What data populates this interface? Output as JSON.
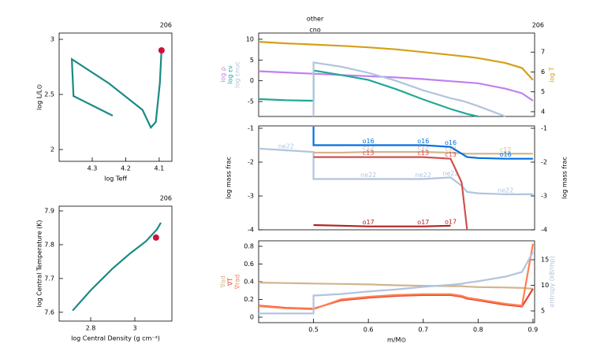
{
  "chart_data": [
    {
      "type": "line",
      "annotation": "206",
      "xlabel": "log Teff",
      "ylabel": "log L/L⊙",
      "color": "#1a8a84",
      "x": [
        4.239,
        4.356,
        4.361,
        4.25,
        4.15,
        4.125,
        4.11,
        4.098,
        4.093
      ],
      "values": [
        2.307,
        2.486,
        2.82,
        2.6,
        2.36,
        2.2,
        2.25,
        2.6,
        2.9
      ],
      "marker": {
        "x": 4.093,
        "y": 2.9,
        "color": "#d0103a"
      },
      "xlim": [
        4.399,
        4.062
      ],
      "ylim": [
        1.893,
        3.057
      ],
      "xticks": [
        4.3,
        4.2,
        4.1
      ],
      "yticks": [
        2,
        2.5,
        3
      ]
    },
    {
      "type": "line",
      "annotation": "206",
      "xlabel": "log Central Density (g cm⁻³)",
      "ylabel": "log Central Temperature (K)",
      "color": "#1a8a84",
      "x": [
        2.718,
        2.8,
        2.9,
        2.98,
        3.05,
        3.1,
        3.118
      ],
      "values": [
        7.605,
        7.665,
        7.73,
        7.775,
        7.81,
        7.845,
        7.865
      ],
      "marker": {
        "x": 3.096,
        "y": 7.821,
        "color": "#d0103a"
      },
      "xlim": [
        2.657,
        3.168
      ],
      "ylim": [
        7.574,
        7.914
      ],
      "xticks": [
        2.8,
        3
      ],
      "yticks": [
        7.6,
        7.7,
        7.8,
        7.9
      ]
    },
    {
      "type": "line",
      "annotation": "206",
      "notes_top": [
        "other",
        "cno"
      ],
      "x": [
        0.4,
        0.45,
        0.5,
        0.5,
        0.55,
        0.6,
        0.65,
        0.7,
        0.75,
        0.77,
        0.78,
        0.8,
        0.85,
        0.88,
        0.9
      ],
      "xlim": [
        0.4,
        0.903
      ],
      "ylim": [
        -8.6,
        11.5
      ],
      "yticks": [
        -5,
        0,
        5,
        10
      ],
      "y2lim": [
        3.76,
        7.96
      ],
      "y2ticks": [
        4,
        5,
        6,
        7
      ],
      "series": [
        {
          "name": "log ρ",
          "color": "#c080f0",
          "values": [
            2.3,
            2.0,
            1.7,
            1.7,
            1.4,
            1.1,
            0.8,
            0.4,
            -0.1,
            -0.3,
            -0.4,
            -0.6,
            -1.9,
            -3,
            -4.8
          ]
        },
        {
          "name": "log εν",
          "color": "#20a898",
          "values": [
            -4.4,
            -4.7,
            -4.8,
            2.5,
            1.4,
            0.2,
            -2.0,
            -4.5,
            -6.8,
            -7.6,
            -8.0,
            -8.6,
            null,
            null,
            null
          ]
        },
        {
          "name": "log εnuc",
          "color": "#b0c4de",
          "values": [
            null,
            null,
            -8.6,
            4.4,
            3.4,
            1.9,
            0,
            -2.3,
            -4.2,
            -4.8,
            -5.2,
            -6.1,
            -8.6,
            null,
            null
          ]
        },
        {
          "name": "log T",
          "color": "#d4a017",
          "axis": "y2",
          "values": [
            7.52,
            7.44,
            7.38,
            7.38,
            7.32,
            7.24,
            7.14,
            7.0,
            6.86,
            6.8,
            6.77,
            6.7,
            6.45,
            6.2,
            5.6
          ]
        }
      ]
    },
    {
      "type": "line",
      "ylabel": "log mass frac",
      "y2label": "log mass frac",
      "inline_labels": true,
      "x": [
        0.4,
        0.45,
        0.5,
        0.5,
        0.55,
        0.6,
        0.65,
        0.7,
        0.75,
        0.77,
        0.78,
        0.8,
        0.85,
        0.88,
        0.9
      ],
      "xlim": [
        0.4,
        0.903
      ],
      "ylim": [
        -4,
        -0.93
      ],
      "yticks": [
        -4,
        -3,
        -2,
        -1
      ],
      "y2lim": [
        -4,
        -0.93
      ],
      "y2ticks": [
        -4,
        -3,
        -2,
        -1
      ],
      "series": [
        {
          "name": "ne22",
          "color": "#b0c4de",
          "values": [
            -1.6,
            -1.65,
            -1.7,
            -2.5,
            -2.5,
            -2.5,
            -2.5,
            -2.5,
            -2.45,
            -2.7,
            -2.88,
            -2.92,
            -2.95,
            -2.95,
            -2.95
          ]
        },
        {
          "name": "c12",
          "color": "#d2b48c",
          "values": [
            null,
            null,
            -1.72,
            -1.72,
            -1.72,
            -1.7,
            -1.7,
            -1.7,
            -1.72,
            -1.74,
            -1.75,
            -1.75,
            -1.75,
            -1.75,
            -1.75
          ]
        },
        {
          "name": "c13",
          "color": "#d05050",
          "values": [
            null,
            null,
            -1.85,
            -1.85,
            -1.85,
            -1.85,
            -1.85,
            -1.85,
            -1.9,
            -2.6,
            -4,
            null,
            null,
            null,
            null
          ]
        },
        {
          "name": "o17",
          "color": "#b22222",
          "values": [
            null,
            null,
            -3.86,
            -3.86,
            -3.88,
            -3.9,
            -3.9,
            -3.9,
            -3.88,
            null,
            null,
            null,
            null,
            null,
            null
          ]
        },
        {
          "name": "o16",
          "color": "#0070e0",
          "values": [
            null,
            null,
            -0.95,
            -1.5,
            -1.5,
            -1.5,
            -1.5,
            -1.5,
            -1.55,
            -1.75,
            -1.85,
            -1.88,
            -1.9,
            -1.9,
            -1.9
          ]
        }
      ]
    },
    {
      "type": "line",
      "xlabel": "m/M⊙",
      "x": [
        0.4,
        0.45,
        0.5,
        0.5,
        0.55,
        0.6,
        0.65,
        0.7,
        0.75,
        0.77,
        0.78,
        0.8,
        0.85,
        0.88,
        0.9
      ],
      "xlim": [
        0.4,
        0.903
      ],
      "ylim": [
        -0.062,
        0.862
      ],
      "xticks": [
        0.5,
        0.6,
        0.7,
        0.8,
        0.9
      ],
      "yticks": [
        0,
        0.2,
        0.4,
        0.6,
        0.8
      ],
      "y2lim": [
        2.7,
        18.7
      ],
      "y2ticks": [
        5,
        10,
        15
      ],
      "series": [
        {
          "name": "∇ad",
          "color": "#d2b48c",
          "values": [
            0.39,
            0.385,
            0.38,
            0.38,
            0.375,
            0.37,
            0.36,
            0.355,
            0.35,
            0.35,
            0.345,
            0.34,
            0.335,
            0.33,
            0.32
          ]
        },
        {
          "name": "∇T",
          "color": "#e8402a",
          "values": [
            0.13,
            0.105,
            0.095,
            0.095,
            0.19,
            0.22,
            0.24,
            0.25,
            0.25,
            0.23,
            0.21,
            0.19,
            0.14,
            0.12,
            0.32
          ]
        },
        {
          "name": "∇rad",
          "color": "#ff7f50",
          "values": [
            0.125,
            0.1,
            0.09,
            0.09,
            0.2,
            0.23,
            0.25,
            0.26,
            0.26,
            0.24,
            0.22,
            0.2,
            0.15,
            0.13,
            0.83
          ]
        },
        {
          "name": "entropy (kB/mp)",
          "color": "#b0c4de",
          "axis": "y2",
          "values": [
            4.5,
            4.5,
            4.5,
            8,
            8.3,
            8.8,
            9.2,
            9.7,
            10.1,
            10.3,
            10.5,
            10.8,
            11.7,
            12.6,
            16.5
          ]
        }
      ]
    }
  ]
}
